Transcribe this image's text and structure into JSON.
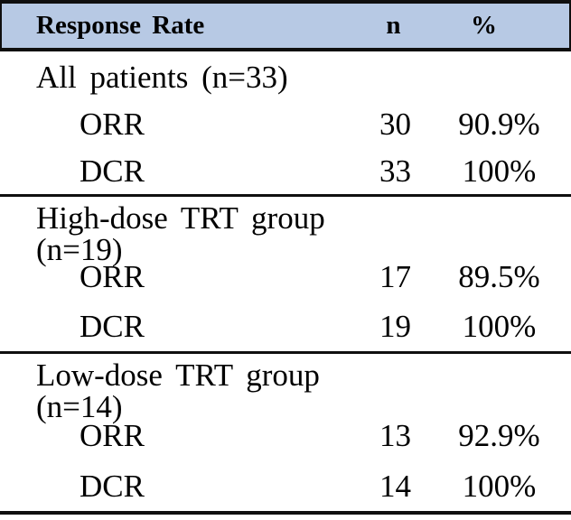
{
  "table": {
    "header": {
      "label": "Response Rate",
      "col_n": "n",
      "col_pct": "%"
    },
    "sections": [
      {
        "title": "All patients (n=33)",
        "rows": [
          {
            "label": "ORR",
            "n": "30",
            "pct": "90.9%"
          },
          {
            "label": "DCR",
            "n": "33",
            "pct": "100%"
          }
        ]
      },
      {
        "title": "High-dose TRT group (n=19)",
        "rows": [
          {
            "label": "ORR",
            "n": "17",
            "pct": "89.5%"
          },
          {
            "label": "DCR",
            "n": "19",
            "pct": "100%"
          }
        ]
      },
      {
        "title": "Low-dose TRT group (n=14)",
        "rows": [
          {
            "label": "ORR",
            "n": "13",
            "pct": "92.9%"
          },
          {
            "label": "DCR",
            "n": "14",
            "pct": "100%"
          }
        ]
      }
    ]
  },
  "colors": {
    "header_bg": "#b7c9e4",
    "border_color": "#0f0f0f",
    "text_color": "#000000",
    "page_bg": "#ffffff"
  }
}
